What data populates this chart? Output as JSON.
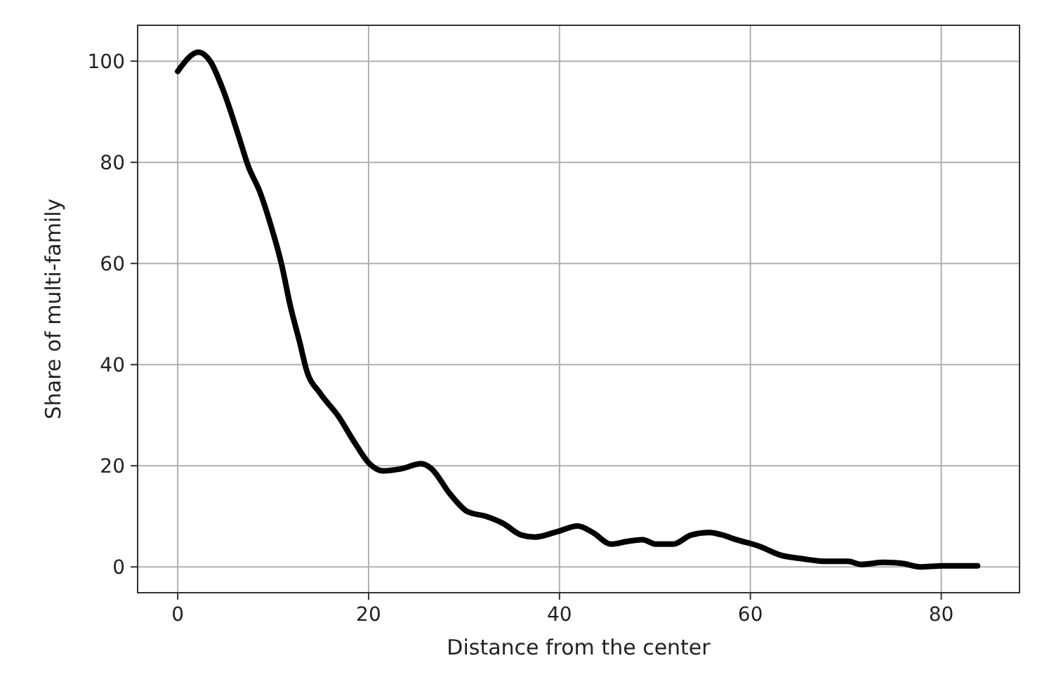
{
  "chart_data": {
    "type": "line",
    "xlabel": "Distance from the center",
    "ylabel": "Share of multi-family",
    "x": [
      0,
      2.2,
      3.4,
      4.8,
      6.4,
      7.4,
      8.6,
      9.7,
      10.9,
      11.8,
      12.8,
      13.5,
      14.9,
      16.8,
      18.6,
      20.1,
      21.5,
      23.4,
      25.5,
      26.6,
      28.5,
      30.4,
      32.3,
      34.1,
      36.0,
      37.4,
      39.8,
      41.9,
      43.5,
      45.4,
      47.0,
      48.7,
      50.1,
      51.9,
      53.8,
      55.7,
      57.1,
      58.5,
      60.9,
      63.2,
      65.5,
      67.9,
      70.2,
      71.6,
      74.0,
      75.9,
      77.8,
      80.1,
      83.8
    ],
    "series": [
      {
        "color": "#000000",
        "values": [
          98,
          101.8,
          100,
          94.1,
          85.1,
          79.2,
          74.2,
          67.9,
          59.7,
          51.6,
          44.3,
          38.9,
          34.4,
          29.9,
          24.4,
          20.4,
          19.0,
          19.4,
          20.4,
          19.4,
          14.5,
          10.9,
          10.0,
          8.6,
          6.3,
          5.9,
          7.0,
          8.1,
          6.8,
          4.5,
          5.0,
          5.4,
          4.5,
          4.5,
          6.3,
          6.8,
          6.3,
          5.4,
          4.1,
          2.3,
          1.6,
          1.1,
          1.1,
          0.5,
          0.9,
          0.7,
          0,
          0.2,
          0.2
        ]
      }
    ],
    "xlim": [
      -4.2,
      88.2
    ],
    "ylim": [
      -5.1,
      107.1
    ],
    "xticks": [
      0,
      20,
      40,
      60,
      80
    ],
    "yticks": [
      0,
      20,
      40,
      60,
      80,
      100
    ],
    "grid": true,
    "marker": "none",
    "line_style": "solid"
  }
}
